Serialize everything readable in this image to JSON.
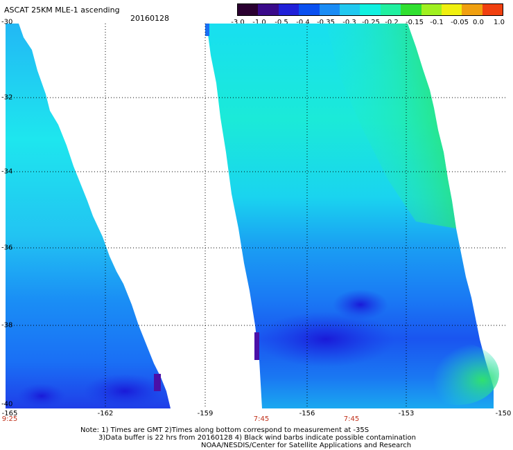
{
  "header": {
    "title": "ASCAT 25KM MLE-1 ascending",
    "date": "20160128"
  },
  "colorbar": {
    "tick_labels": [
      "-3.0",
      "-1.0",
      "-0.5",
      "-0.4",
      "-0.35",
      "-0.3",
      "-0.25",
      "-0.2",
      "-0.15",
      "-0.1",
      "-0.05",
      "0.0",
      "1.0"
    ],
    "colors": [
      "#2a0030",
      "#3a0a8a",
      "#2020d8",
      "#0a50f0",
      "#1a8cf5",
      "#20c8f0",
      "#10f0e0",
      "#20f0a0",
      "#30e030",
      "#a0f020",
      "#f0f010",
      "#f0a010",
      "#f04010"
    ]
  },
  "map": {
    "lat_labels": [
      "-30",
      "-32",
      "-34",
      "-36",
      "-38",
      "-40"
    ],
    "lon_labels": [
      "-165",
      "-162",
      "-159",
      "-156",
      "-153",
      "-150"
    ],
    "time_labels": [
      "9:25",
      "7:45",
      "7:45"
    ]
  },
  "footer": {
    "note1": "Note: 1) Times are GMT 2)Times along bottom correspond to measurement at -35S",
    "note2": "3)Data buffer is 22 hrs from 20160128 4) Black wind barbs indicate possible contamination",
    "credit": "NOAA/NESDIS/Center for Satellite Applications and Research"
  }
}
